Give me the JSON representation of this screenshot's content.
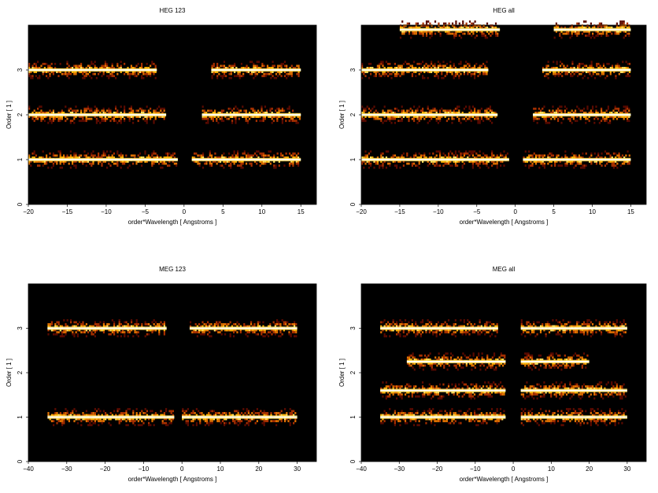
{
  "figure": {
    "background": "#000000",
    "colormap": [
      "#000000",
      "#5a0a00",
      "#a83000",
      "#e07000",
      "#ffb000",
      "#ffe060",
      "#ffffff"
    ]
  },
  "chart_data": [
    {
      "type": "heatmap",
      "title": "HEG 123",
      "xlabel": "order*Wavelength [ Angstroms ]",
      "ylabel": "Order [ 1 ]",
      "xlim": [
        -20,
        17
      ],
      "ylim": [
        0,
        4
      ],
      "xticks": [
        -20,
        -15,
        -10,
        -5,
        0,
        5,
        10,
        15
      ],
      "yticks": [
        0,
        1,
        2,
        3
      ],
      "bands": [
        {
          "order": 1,
          "segments": [
            [
              -20,
              -0.8
            ],
            [
              1,
              15
            ]
          ]
        },
        {
          "order": 2,
          "segments": [
            [
              -20,
              -2.3
            ],
            [
              2.3,
              15
            ]
          ]
        },
        {
          "order": 3,
          "segments": [
            [
              -20,
              -3.5
            ],
            [
              3.5,
              15
            ]
          ]
        }
      ]
    },
    {
      "type": "heatmap",
      "title": "HEG all",
      "xlabel": "order*Wavelength [ Angstroms ]",
      "ylabel": "Order [ 1 ]",
      "xlim": [
        -20,
        17
      ],
      "ylim": [
        0,
        4
      ],
      "xticks": [
        -20,
        -15,
        -10,
        -5,
        0,
        5,
        10,
        15
      ],
      "yticks": [
        0,
        1,
        2,
        3
      ],
      "bands": [
        {
          "order": 1,
          "segments": [
            [
              -20,
              -0.8
            ],
            [
              1,
              15
            ]
          ]
        },
        {
          "order": 2,
          "segments": [
            [
              -20,
              -2.3
            ],
            [
              2.3,
              15
            ]
          ]
        },
        {
          "order": 3,
          "segments": [
            [
              -20,
              -3.5
            ],
            [
              3.5,
              15
            ]
          ]
        },
        {
          "order": 3.9,
          "segments": [
            [
              -15,
              -2
            ],
            [
              5,
              15
            ]
          ]
        }
      ]
    },
    {
      "type": "heatmap",
      "title": "MEG 123",
      "xlabel": "order*Wavelength [ Angstroms ]",
      "ylabel": "Order [ 1 ]",
      "xlim": [
        -40,
        35
      ],
      "ylim": [
        0,
        4
      ],
      "xticks": [
        -40,
        -30,
        -20,
        -10,
        0,
        10,
        20,
        30
      ],
      "yticks": [
        0,
        1,
        2,
        3
      ],
      "bands": [
        {
          "order": 1,
          "segments": [
            [
              -35,
              -2
            ],
            [
              0,
              30
            ]
          ]
        },
        {
          "order": 3,
          "segments": [
            [
              -35,
              -4
            ],
            [
              2,
              30
            ]
          ]
        }
      ]
    },
    {
      "type": "heatmap",
      "title": "MEG all",
      "xlabel": "order*Wavelength [ Angstroms ]",
      "ylabel": "Order [ 1 ]",
      "xlim": [
        -40,
        35
      ],
      "ylim": [
        0,
        4
      ],
      "xticks": [
        -40,
        -30,
        -20,
        -10,
        0,
        10,
        20,
        30
      ],
      "yticks": [
        0,
        1,
        2,
        3
      ],
      "bands": [
        {
          "order": 1,
          "segments": [
            [
              -35,
              -2
            ],
            [
              2,
              30
            ]
          ]
        },
        {
          "order": 1.6,
          "segments": [
            [
              -35,
              -2
            ],
            [
              2,
              30
            ]
          ]
        },
        {
          "order": 2.25,
          "segments": [
            [
              -28,
              -2
            ],
            [
              2,
              20
            ]
          ]
        },
        {
          "order": 3,
          "segments": [
            [
              -35,
              -4
            ],
            [
              2,
              30
            ]
          ]
        }
      ]
    }
  ]
}
